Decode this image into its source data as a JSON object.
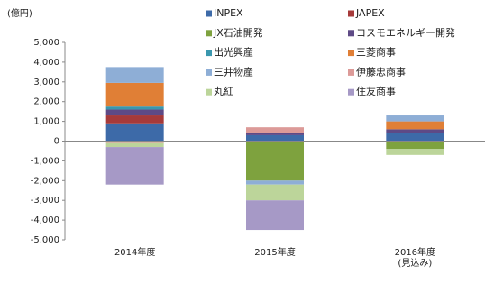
{
  "chart_data": {
    "type": "stacked_bar",
    "y_label": "(億円)",
    "categories": [
      "2014年度",
      "2015年度",
      "2016年度\n(見込み)"
    ],
    "ylim": [
      -5000,
      5000
    ],
    "yticks": [
      {
        "value": 5000,
        "label": "5,000"
      },
      {
        "value": 4000,
        "label": "4,000"
      },
      {
        "value": 3000,
        "label": "3,000"
      },
      {
        "value": 2000,
        "label": "2,000"
      },
      {
        "value": 1000,
        "label": "1,000"
      },
      0,
      {
        "value": -1000,
        "label": "-1,000"
      },
      {
        "value": -2000,
        "label": "-2,000"
      },
      {
        "value": -3000,
        "label": "-3,000"
      },
      {
        "value": -4000,
        "label": "-4,000"
      },
      {
        "value": -5000,
        "label": "-5,000"
      }
    ],
    "series": [
      {
        "name": "INPEX",
        "color": "#3d6aa8",
        "values": [
          900,
          300,
          400
        ]
      },
      {
        "name": "JAPEX",
        "color": "#a63a3a",
        "values": [
          400,
          null,
          null
        ]
      },
      {
        "name": "JX石油開発",
        "color": "#7ea23e",
        "values": [
          null,
          -2000,
          -400
        ]
      },
      {
        "name": "コスモエネルギー開発",
        "color": "#5e4a86",
        "values": [
          300,
          100,
          200
        ]
      },
      {
        "name": "出光興産",
        "color": "#3a97ae",
        "values": [
          150,
          null,
          null
        ]
      },
      {
        "name": "三菱商事",
        "color": "#e07f36",
        "values": [
          1200,
          null,
          400
        ]
      },
      {
        "name": "三井物産",
        "color": "#8eaed6",
        "values": [
          800,
          -200,
          300
        ]
      },
      {
        "name": "伊藤忠商事",
        "color": "#dc9a98",
        "values": [
          -100,
          300,
          null
        ]
      },
      {
        "name": "丸紅",
        "color": "#bcd59a",
        "values": [
          -200,
          -800,
          -300
        ]
      },
      {
        "name": "住友商事",
        "color": "#a699c6",
        "values": [
          -1900,
          -1500,
          null
        ]
      }
    ]
  }
}
